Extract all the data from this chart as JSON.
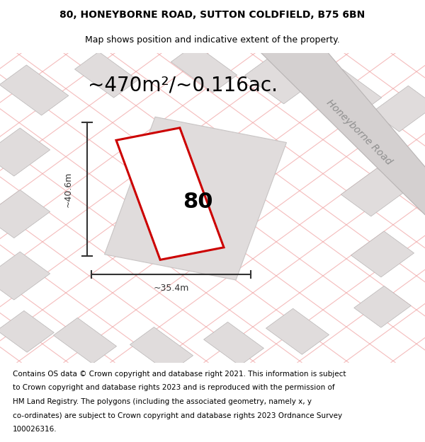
{
  "title_line1": "80, HONEYBORNE ROAD, SUTTON COLDFIELD, B75 6BN",
  "title_line2": "Map shows position and indicative extent of the property.",
  "area_label": "~470m²/~0.116ac.",
  "property_number": "80",
  "dim_height": "~40.6m",
  "dim_width": "~35.4m",
  "road_label": "Honeyborne Road",
  "footer_lines": [
    "Contains OS data © Crown copyright and database right 2021. This information is subject",
    "to Crown copyright and database rights 2023 and is reproduced with the permission of",
    "HM Land Registry. The polygons (including the associated geometry, namely x, y",
    "co-ordinates) are subject to Crown copyright and database rights 2023 Ordnance Survey",
    "100026316."
  ],
  "map_bg": "#f7f2f2",
  "property_fill": "#ffffff",
  "property_stroke": "#cc0000",
  "dim_color": "#333333",
  "pink_line": "#f0a0a0",
  "gray_building": "#e0dcdc",
  "road_fill": "#d4d0d0",
  "title_fontsize": 10,
  "subtitle_fontsize": 9,
  "area_fontsize": 20,
  "number_fontsize": 22,
  "road_label_fontsize": 10,
  "footer_fontsize": 7.5,
  "dim_fontsize": 9
}
